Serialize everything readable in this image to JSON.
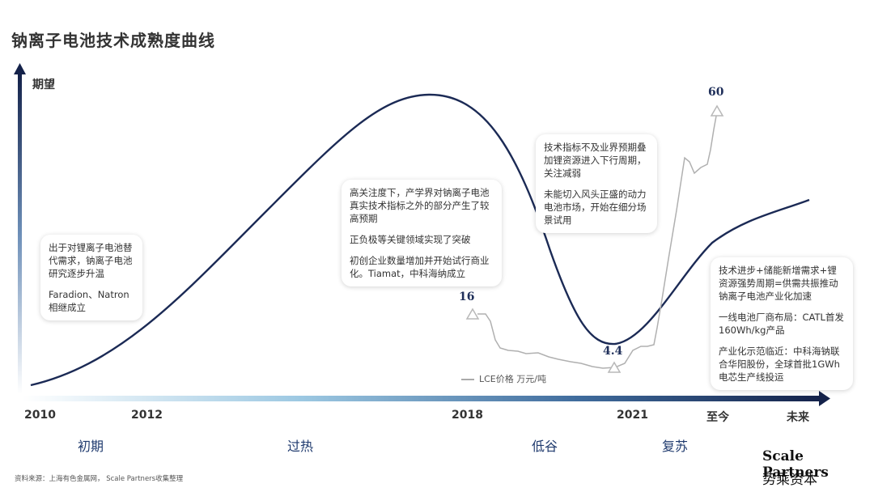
{
  "chart_data": {
    "type": "line",
    "title": "钠离子电池技术成熟度曲线",
    "ylabel": "期望",
    "x_ticks": [
      "2010",
      "2012",
      "2018",
      "2021",
      "至今",
      "未来"
    ],
    "phases": [
      "初期",
      "过热",
      "低谷",
      "复苏"
    ],
    "series": [
      {
        "name": "LCE价格 万元/吨",
        "values": [
          16,
          4.4,
          60
        ],
        "labels": [
          "16",
          "4.4",
          "60"
        ]
      }
    ],
    "legend_text": "LCE价格 万元/吨",
    "annotations": [
      {
        "paragraphs": [
          "出于对锂离子电池替代需求，钠离子电池研究逐步升温",
          "Faradion、Natron相继成立"
        ]
      },
      {
        "paragraphs": [
          "高关注度下，产学界对钠离子电池真实技术指标之外的部分产生了较高预期",
          "正负极等关键领域实现了突破",
          "初创企业数量增加并开始试行商业化。Tiamat，中科海纳成立"
        ]
      },
      {
        "paragraphs": [
          "技术指标不及业界预期叠加锂资源进入下行周期，关注减弱",
          "未能切入风头正盛的动力电池市场，开始在细分场景试用"
        ]
      },
      {
        "paragraphs": [
          "技术进步+储能新增需求+锂资源强势周期=供需共振推动钠离子电池产业化加速",
          "一线电池厂商布局：CATL首发160Wh/kg产品",
          "产业化示范临近：中科海钠联合华阳股份，全球首批1GWh电芯生产线投运"
        ]
      }
    ],
    "source": "资料来源：上海有色金属网， Scale Partners收集整理",
    "brand": {
      "en": "Scale Partners",
      "cn": "势乘资本"
    },
    "colors": {
      "curve": "#1b2a55",
      "lce": "#b0b0b0",
      "axis_dark": "#14224a",
      "axis_light": "#d8ecf7"
    }
  }
}
